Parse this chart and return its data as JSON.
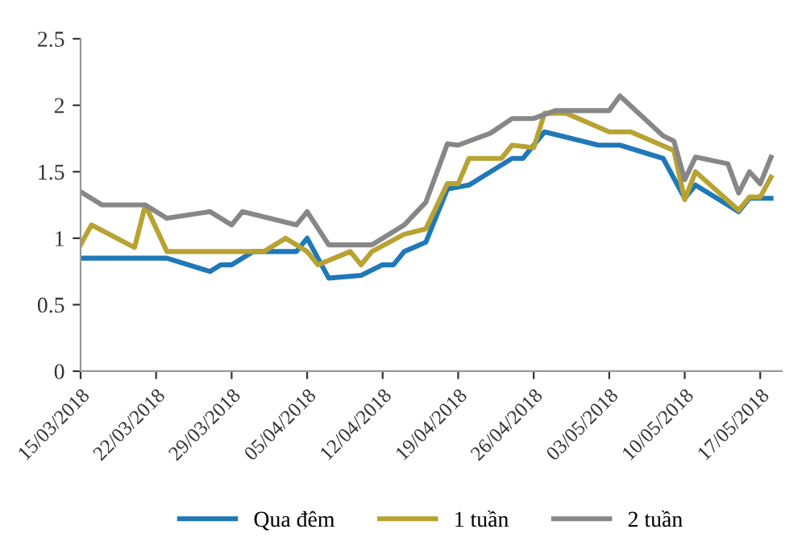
{
  "chart_data": {
    "type": "line",
    "xlim": [
      "2018-03-15",
      "2018-05-19"
    ],
    "ylim": [
      0,
      2.5
    ],
    "yticks": [
      0,
      0.5,
      1,
      1.5,
      2,
      2.5
    ],
    "xticks": [
      {
        "value": "2018-03-15",
        "label": "15/03/2018"
      },
      {
        "value": "2018-03-22",
        "label": "22/03/2018"
      },
      {
        "value": "2018-03-29",
        "label": "29/03/2018"
      },
      {
        "value": "2018-04-05",
        "label": "05/04/2018"
      },
      {
        "value": "2018-04-12",
        "label": "12/04/2018"
      },
      {
        "value": "2018-04-19",
        "label": "19/04/2018"
      },
      {
        "value": "2018-04-26",
        "label": "26/04/2018"
      },
      {
        "value": "2018-05-03",
        "label": "03/05/2018"
      },
      {
        "value": "2018-05-10",
        "label": "10/05/2018"
      },
      {
        "value": "2018-05-17",
        "label": "17/05/2018"
      }
    ],
    "grid": false,
    "legend": "bottom",
    "marker": "none",
    "line_style": "solid",
    "series": [
      {
        "name": "Qua đêm",
        "color": "#1f78b8",
        "x": [
          "2018-03-15",
          "2018-03-23",
          "2018-03-27",
          "2018-03-28",
          "2018-03-29",
          "2018-03-31",
          "2018-04-04",
          "2018-04-05",
          "2018-04-07",
          "2018-04-10",
          "2018-04-12",
          "2018-04-13",
          "2018-04-14",
          "2018-04-16",
          "2018-04-18",
          "2018-04-20",
          "2018-04-24",
          "2018-04-25",
          "2018-04-27",
          "2018-05-02",
          "2018-05-04",
          "2018-05-08",
          "2018-05-10",
          "2018-05-11",
          "2018-05-15",
          "2018-05-16",
          "2018-05-18"
        ],
        "values": [
          0.85,
          0.85,
          0.75,
          0.8,
          0.8,
          0.9,
          0.9,
          1.0,
          0.7,
          0.72,
          0.8,
          0.8,
          0.9,
          0.97,
          1.37,
          1.4,
          1.6,
          1.6,
          1.8,
          1.7,
          1.7,
          1.6,
          1.3,
          1.4,
          1.2,
          1.3,
          1.3
        ]
      },
      {
        "name": "1 tuần",
        "color": "#b8a232",
        "x": [
          "2018-03-15",
          "2018-03-16",
          "2018-03-20",
          "2018-03-21",
          "2018-03-23",
          "2018-04-01",
          "2018-04-03",
          "2018-04-05",
          "2018-04-06",
          "2018-04-09",
          "2018-04-10",
          "2018-04-11",
          "2018-04-14",
          "2018-04-16",
          "2018-04-18",
          "2018-04-19",
          "2018-04-20",
          "2018-04-23",
          "2018-04-24",
          "2018-04-26",
          "2018-04-27",
          "2018-04-29",
          "2018-05-03",
          "2018-05-05",
          "2018-05-09",
          "2018-05-10",
          "2018-05-11",
          "2018-05-15",
          "2018-05-16",
          "2018-05-17",
          "2018-05-18"
        ],
        "values": [
          0.95,
          1.1,
          0.93,
          1.25,
          0.9,
          0.9,
          1.0,
          0.9,
          0.8,
          0.9,
          0.8,
          0.9,
          1.03,
          1.07,
          1.41,
          1.41,
          1.6,
          1.6,
          1.7,
          1.68,
          1.94,
          1.94,
          1.8,
          1.8,
          1.66,
          1.29,
          1.5,
          1.21,
          1.31,
          1.31,
          1.46
        ]
      },
      {
        "name": "2 tuần",
        "color": "#878787",
        "x": [
          "2018-03-15",
          "2018-03-17",
          "2018-03-21",
          "2018-03-23",
          "2018-03-27",
          "2018-03-29",
          "2018-03-30",
          "2018-04-04",
          "2018-04-05",
          "2018-04-07",
          "2018-04-11",
          "2018-04-13",
          "2018-04-14",
          "2018-04-16",
          "2018-04-18",
          "2018-04-19",
          "2018-04-22",
          "2018-04-24",
          "2018-04-26",
          "2018-04-28",
          "2018-05-03",
          "2018-05-04",
          "2018-05-08",
          "2018-05-09",
          "2018-05-10",
          "2018-05-11",
          "2018-05-14",
          "2018-05-15",
          "2018-05-16",
          "2018-05-17",
          "2018-05-18"
        ],
        "values": [
          1.35,
          1.25,
          1.25,
          1.15,
          1.2,
          1.1,
          1.2,
          1.1,
          1.2,
          0.95,
          0.95,
          1.05,
          1.1,
          1.27,
          1.71,
          1.7,
          1.79,
          1.9,
          1.9,
          1.96,
          1.96,
          2.07,
          1.77,
          1.73,
          1.44,
          1.61,
          1.56,
          1.34,
          1.5,
          1.41,
          1.61
        ]
      }
    ]
  }
}
